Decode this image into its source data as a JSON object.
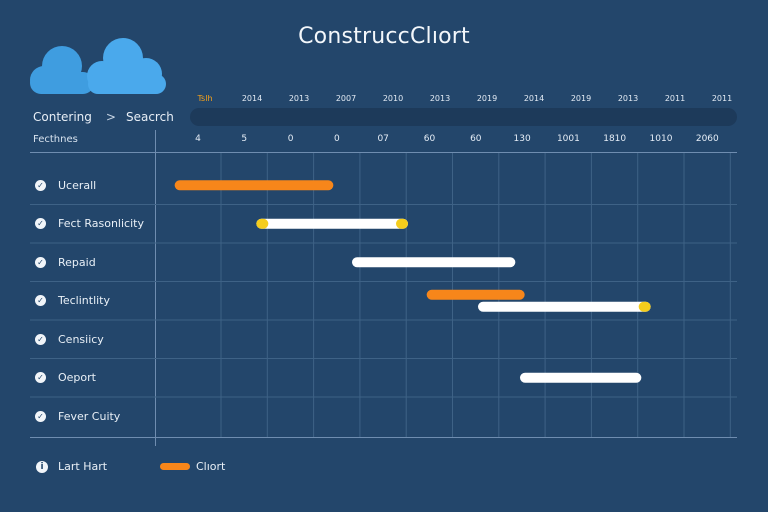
{
  "header": {
    "title": "ConstrucсClıort"
  },
  "breadcrumb": {
    "first": "Contering",
    "separator": ">",
    "second": "Seacrch"
  },
  "task_column_header": "Fecthnes",
  "top_labels": [
    "Tslh",
    "2014",
    "2013",
    "2007",
    "2010",
    "2013",
    "2019",
    "2014",
    "2019",
    "2013",
    "2011",
    "2011"
  ],
  "colors": {
    "background": "#23466b",
    "orange": "#f7861a",
    "white": "#ffffff",
    "yellow": "#f5cd1c",
    "grid": "#3e6286"
  },
  "footer": {
    "label": "Lart Hart"
  },
  "legend": {
    "label": "Clıort",
    "color": "#f7861a"
  },
  "chart_data": {
    "type": "gantt",
    "title": "ConstrucсClıort",
    "x_ticks": [
      "4",
      "5",
      "0",
      "0",
      "07",
      "60",
      "60",
      "130",
      "1001",
      "1810",
      "1010",
      "2060"
    ],
    "x_range": [
      0,
      12
    ],
    "tasks": [
      {
        "name": "Ucerall",
        "bars": [
          {
            "start": 0.1,
            "end": 3.5,
            "color": "#f7861a"
          }
        ]
      },
      {
        "name": "Fect Rasonlicity",
        "bars": [
          {
            "start": 1.85,
            "end": 5.1,
            "color": "#ffffff",
            "cap_start": "#f5cd1c",
            "cap_end": "#f5cd1c"
          }
        ]
      },
      {
        "name": "Repaid",
        "bars": [
          {
            "start": 3.9,
            "end": 7.4,
            "color": "#ffffff"
          }
        ]
      },
      {
        "name": "Teclintlity",
        "bars": [
          {
            "start": 5.5,
            "end": 7.6,
            "color": "#f7861a"
          },
          {
            "start": 6.6,
            "end": 10.3,
            "color": "#ffffff",
            "cap_end": "#f5cd1c"
          }
        ]
      },
      {
        "name": "Censiicy",
        "bars": []
      },
      {
        "name": "Oeport",
        "bars": [
          {
            "start": 7.5,
            "end": 10.1,
            "color": "#ffffff"
          }
        ]
      },
      {
        "name": "Fever Cuity",
        "bars": []
      }
    ],
    "grid": true
  }
}
